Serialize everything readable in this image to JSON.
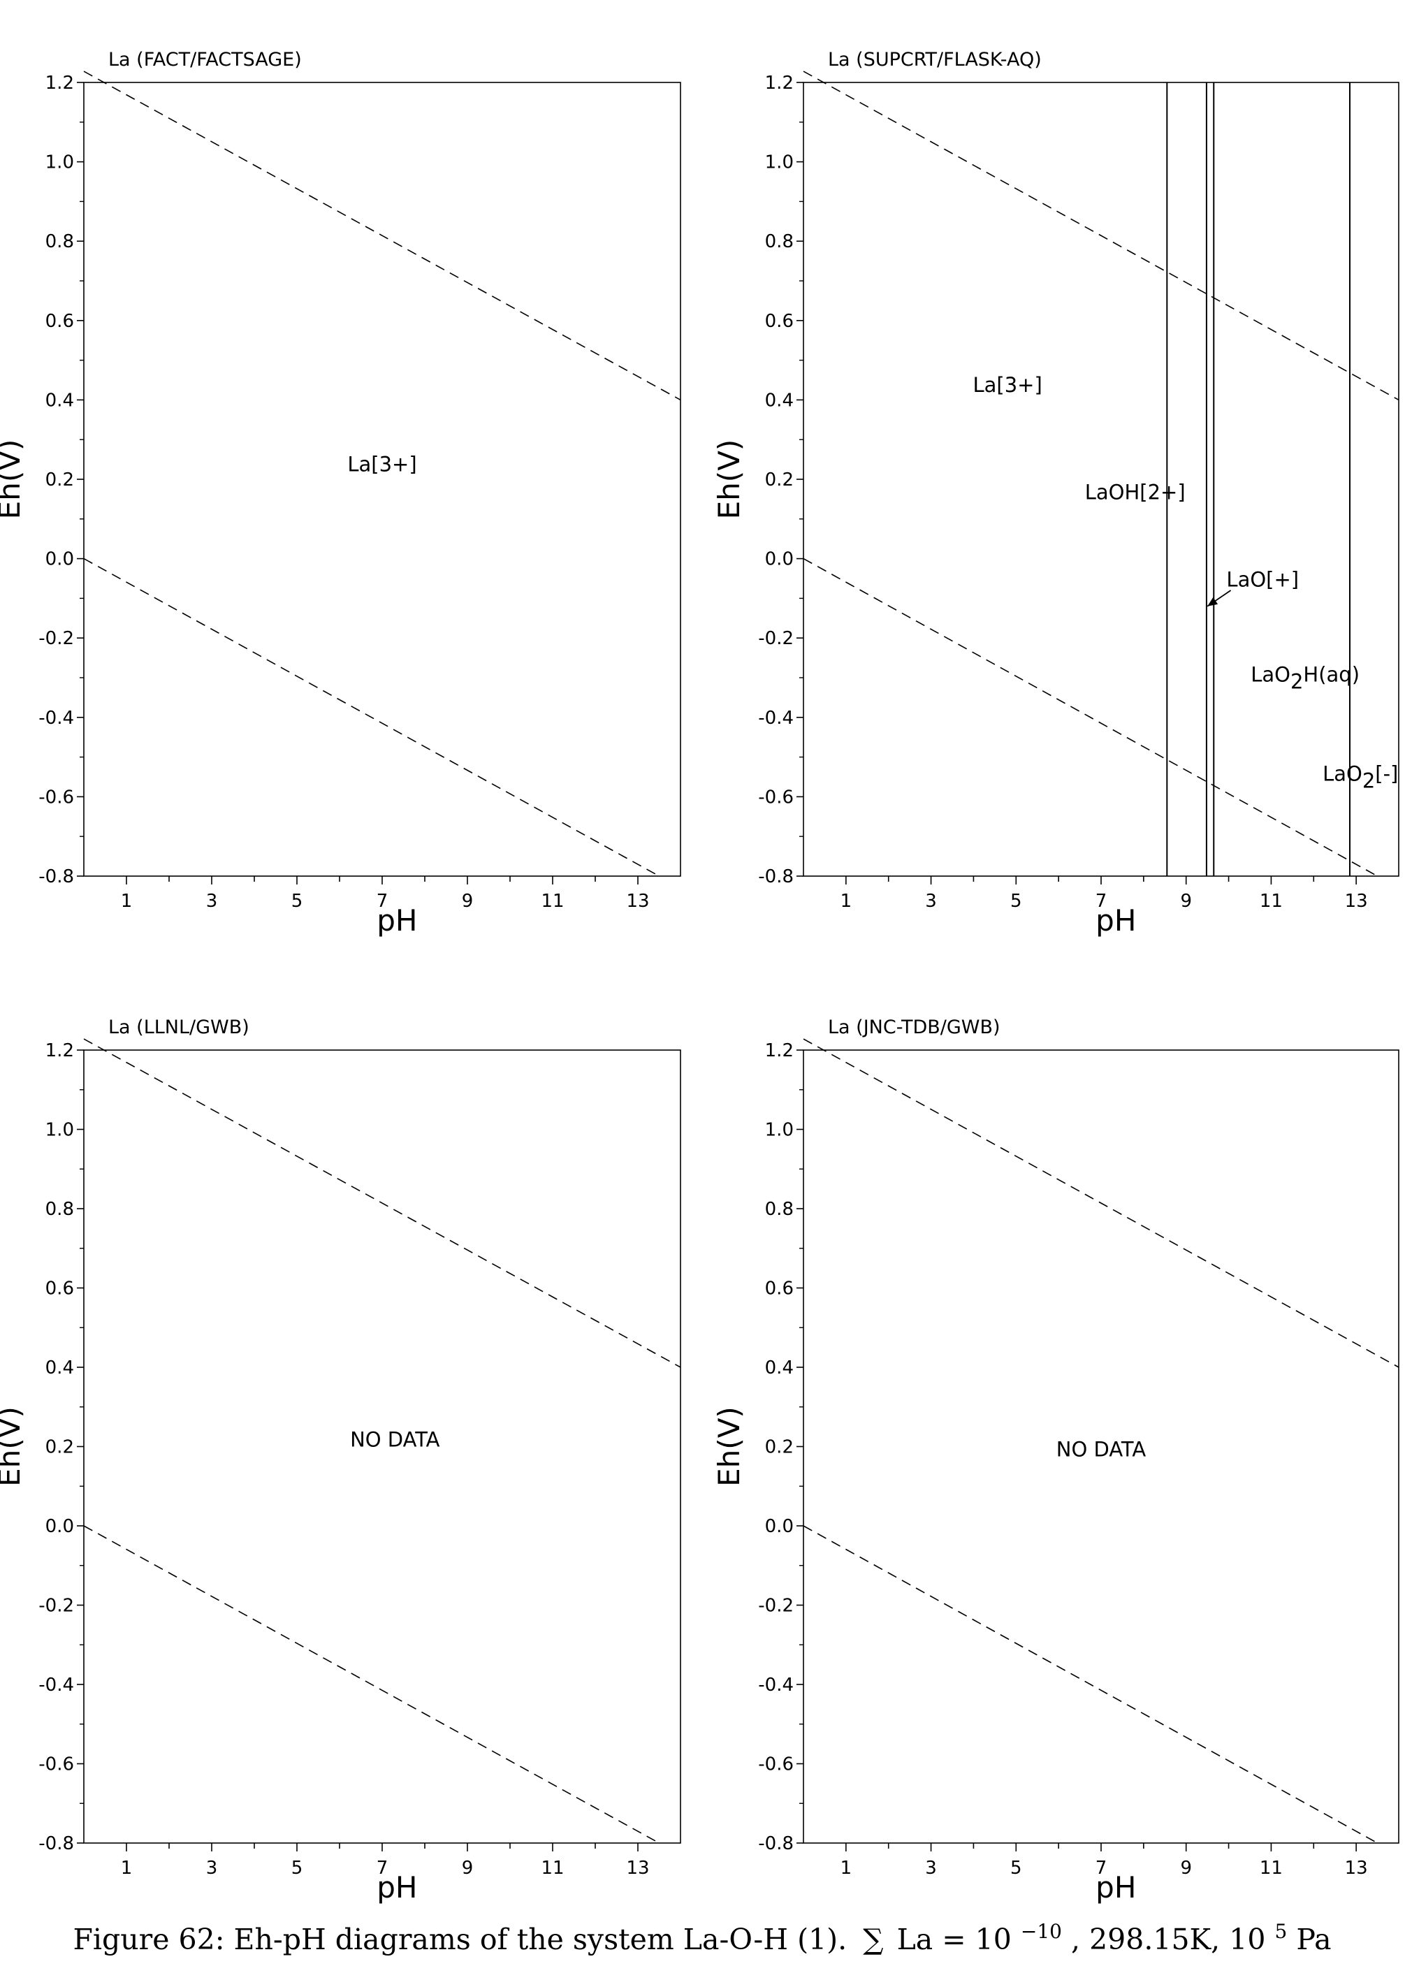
{
  "caption": {
    "prefix": "Figure 62: Eh-pH diagrams of the system La-O-H (1).",
    "sum": "∑",
    "subject": "La",
    "equals": " = ",
    "base": "10",
    "exponent": "−10",
    "rest": ", 298.15K, 10",
    "pressure_exponent": "5",
    "pressure_unit": " Pa"
  },
  "chart_data": [
    {
      "type": "line",
      "title": "La (FACT/FACTSAGE)",
      "xlabel": "pH",
      "ylabel": "Eh(V)",
      "xlim": [
        0,
        14
      ],
      "ylim": [
        -0.8,
        1.2
      ],
      "x_ticks": [
        1,
        3,
        5,
        7,
        9,
        11,
        13
      ],
      "y_ticks": [
        -0.8,
        -0.6,
        -0.4,
        -0.2,
        0.0,
        0.2,
        0.4,
        0.6,
        0.8,
        1.0,
        1.2
      ],
      "y_tick_labels": [
        "-0.8",
        "-0.6",
        "-0.4",
        "-0.2",
        "0.0",
        "0.2",
        "0.4",
        "0.6",
        "0.8",
        "1.0",
        "1.2"
      ],
      "grid": false,
      "series": [
        {
          "style": "dashed",
          "x": [
            0,
            14
          ],
          "y": [
            1.228,
            0.4
          ]
        },
        {
          "style": "dashed",
          "x": [
            0,
            13.5
          ],
          "y": [
            0.0,
            -0.8
          ]
        }
      ],
      "boundaries": [],
      "labels": [
        {
          "text": "La[3+]",
          "x": 7.0,
          "y": 0.22
        }
      ]
    },
    {
      "type": "line",
      "title": "La (SUPCRT/FLASK-AQ)",
      "xlabel": "pH",
      "ylabel": "Eh(V)",
      "xlim": [
        0,
        14
      ],
      "ylim": [
        -0.8,
        1.2
      ],
      "x_ticks": [
        1,
        3,
        5,
        7,
        9,
        11,
        13
      ],
      "y_ticks": [
        -0.8,
        -0.6,
        -0.4,
        -0.2,
        0.0,
        0.2,
        0.4,
        0.6,
        0.8,
        1.0,
        1.2
      ],
      "y_tick_labels": [
        "-0.8",
        "-0.6",
        "-0.4",
        "-0.2",
        "0.0",
        "0.2",
        "0.4",
        "0.6",
        "0.8",
        "1.0",
        "1.2"
      ],
      "grid": false,
      "series": [
        {
          "style": "dashed",
          "x": [
            0,
            14
          ],
          "y": [
            1.228,
            0.4
          ]
        },
        {
          "style": "dashed",
          "x": [
            0,
            13.5
          ],
          "y": [
            0.0,
            -0.8
          ]
        }
      ],
      "boundaries": [
        {
          "x": 8.55,
          "y": [
            -0.8,
            1.2
          ]
        },
        {
          "x": 9.48,
          "y": [
            -0.8,
            1.2
          ]
        },
        {
          "x": 9.65,
          "y": [
            -0.8,
            1.2
          ]
        },
        {
          "x": 12.85,
          "y": [
            -0.8,
            1.2
          ]
        }
      ],
      "labels": [
        {
          "text": "La[3+]",
          "x": 4.8,
          "y": 0.42
        },
        {
          "text": "LaOH[2+]",
          "x": 7.8,
          "y": 0.15
        },
        {
          "text": "LaO[+]",
          "x": 10.8,
          "y": -0.07
        },
        {
          "text": "LaO",
          "sub": "2",
          "suffix": "H(aq)",
          "x": 11.8,
          "y": -0.31
        },
        {
          "text": "LaO",
          "sub": "2",
          "suffix": "[-]",
          "x": 13.1,
          "y": -0.56
        }
      ],
      "arrow": {
        "from": [
          10.05,
          -0.08
        ],
        "to": [
          9.5,
          -0.12
        ]
      }
    },
    {
      "type": "line",
      "title": "La (LLNL/GWB)",
      "xlabel": "pH",
      "ylabel": "Eh(V)",
      "xlim": [
        0,
        14
      ],
      "ylim": [
        -0.8,
        1.2
      ],
      "x_ticks": [
        1,
        3,
        5,
        7,
        9,
        11,
        13
      ],
      "y_ticks": [
        -0.8,
        -0.6,
        -0.4,
        -0.2,
        0.0,
        0.2,
        0.4,
        0.6,
        0.8,
        1.0,
        1.2
      ],
      "y_tick_labels": [
        "-0.8",
        "-0.6",
        "-0.4",
        "-0.2",
        "0.0",
        "0.2",
        "0.4",
        "0.6",
        "0.8",
        "1.0",
        "1.2"
      ],
      "grid": false,
      "series": [
        {
          "style": "dashed",
          "x": [
            0,
            14
          ],
          "y": [
            1.228,
            0.4
          ]
        },
        {
          "style": "dashed",
          "x": [
            0,
            13.5
          ],
          "y": [
            0.0,
            -0.8
          ]
        }
      ],
      "boundaries": [],
      "labels": [
        {
          "text": "NO DATA",
          "x": 7.3,
          "y": 0.2
        }
      ]
    },
    {
      "type": "line",
      "title": "La (JNC-TDB/GWB)",
      "xlabel": "pH",
      "ylabel": "Eh(V)",
      "xlim": [
        0,
        14
      ],
      "ylim": [
        -0.8,
        1.2
      ],
      "x_ticks": [
        1,
        3,
        5,
        7,
        9,
        11,
        13
      ],
      "y_ticks": [
        -0.8,
        -0.6,
        -0.4,
        -0.2,
        0.0,
        0.2,
        0.4,
        0.6,
        0.8,
        1.0,
        1.2
      ],
      "y_tick_labels": [
        "-0.8",
        "-0.6",
        "-0.4",
        "-0.2",
        "0.0",
        "0.2",
        "0.4",
        "0.6",
        "0.8",
        "1.0",
        "1.2"
      ],
      "grid": false,
      "series": [
        {
          "style": "dashed",
          "x": [
            0,
            14
          ],
          "y": [
            1.228,
            0.4
          ]
        },
        {
          "style": "dashed",
          "x": [
            0,
            13.5
          ],
          "y": [
            0.0,
            -0.8
          ]
        }
      ],
      "boundaries": [],
      "labels": [
        {
          "text": "NO DATA",
          "x": 7.0,
          "y": 0.175
        }
      ]
    }
  ]
}
